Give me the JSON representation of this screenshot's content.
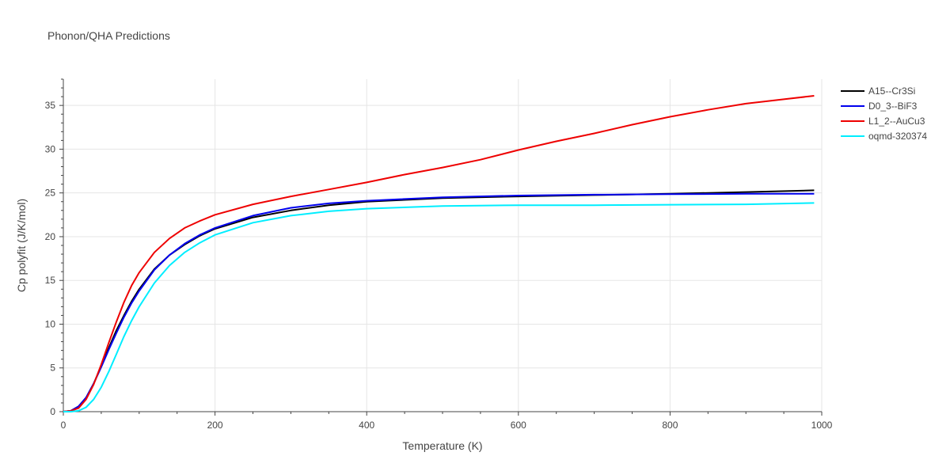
{
  "chart_data": {
    "type": "line",
    "title": "Phonon/QHA Predictions",
    "xlabel": "Temperature (K)",
    "ylabel": "Cp polyfit (J/K/mol)",
    "xlim": [
      0,
      1000
    ],
    "ylim": [
      0,
      38
    ],
    "xticks": [
      0,
      200,
      400,
      600,
      800,
      1000
    ],
    "yticks": [
      0,
      5,
      10,
      15,
      20,
      25,
      30,
      35
    ],
    "grid": true,
    "legend_position": "top-right",
    "series": [
      {
        "name": "A15--Cr3Si",
        "color": "#000000",
        "x": [
          0,
          10,
          20,
          30,
          40,
          50,
          60,
          70,
          80,
          90,
          100,
          120,
          140,
          160,
          180,
          200,
          250,
          300,
          350,
          400,
          500,
          600,
          700,
          800,
          900,
          990
        ],
        "y": [
          0,
          0.1,
          0.6,
          1.6,
          3.2,
          5.2,
          7.3,
          9.3,
          11.0,
          12.6,
          14.0,
          16.3,
          17.9,
          19.1,
          20.1,
          20.9,
          22.2,
          23.0,
          23.6,
          24.0,
          24.4,
          24.6,
          24.75,
          24.9,
          25.1,
          25.3
        ]
      },
      {
        "name": "D0_3--BiF3",
        "color": "#0000ee",
        "x": [
          0,
          10,
          20,
          30,
          40,
          50,
          60,
          70,
          80,
          90,
          100,
          120,
          140,
          160,
          180,
          200,
          250,
          300,
          350,
          400,
          500,
          600,
          700,
          800,
          900,
          990
        ],
        "y": [
          0,
          0.1,
          0.6,
          1.6,
          3.2,
          5.1,
          7.1,
          9.0,
          10.8,
          12.4,
          13.8,
          16.2,
          17.9,
          19.2,
          20.2,
          21.0,
          22.4,
          23.3,
          23.8,
          24.1,
          24.5,
          24.7,
          24.8,
          24.85,
          24.9,
          24.9
        ]
      },
      {
        "name": "L1_2--AuCu3",
        "color": "#ee0000",
        "x": [
          0,
          10,
          20,
          30,
          40,
          50,
          60,
          70,
          80,
          90,
          100,
          120,
          140,
          160,
          180,
          200,
          250,
          300,
          350,
          400,
          450,
          500,
          550,
          600,
          650,
          700,
          750,
          800,
          850,
          900,
          950,
          990
        ],
        "y": [
          0,
          0.1,
          0.4,
          1.4,
          3.1,
          5.4,
          7.9,
          10.3,
          12.5,
          14.4,
          15.9,
          18.2,
          19.8,
          21.0,
          21.8,
          22.5,
          23.7,
          24.6,
          25.4,
          26.2,
          27.1,
          27.9,
          28.8,
          29.9,
          30.9,
          31.8,
          32.8,
          33.7,
          34.5,
          35.2,
          35.7,
          36.1
        ]
      },
      {
        "name": "oqmd-320374",
        "color": "#00eeff",
        "x": [
          0,
          10,
          20,
          30,
          40,
          50,
          60,
          70,
          80,
          90,
          100,
          120,
          140,
          160,
          180,
          200,
          250,
          300,
          350,
          400,
          500,
          600,
          700,
          800,
          900,
          990
        ],
        "y": [
          0,
          0,
          0.1,
          0.5,
          1.4,
          2.8,
          4.6,
          6.6,
          8.6,
          10.4,
          12.0,
          14.7,
          16.7,
          18.2,
          19.3,
          20.2,
          21.6,
          22.4,
          22.9,
          23.2,
          23.5,
          23.6,
          23.6,
          23.65,
          23.7,
          23.85
        ]
      }
    ]
  }
}
